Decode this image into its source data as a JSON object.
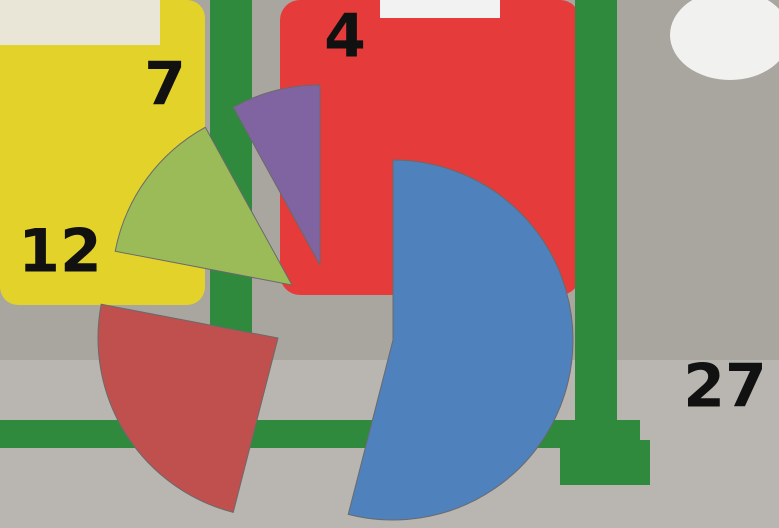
{
  "chart_data": {
    "type": "pie",
    "categories": [
      null,
      null,
      null,
      null
    ],
    "values": [
      27,
      12,
      7,
      4
    ],
    "colors": [
      "#4f81bd",
      "#c0504d",
      "#9bbb59",
      "#8064a2"
    ]
  }
}
